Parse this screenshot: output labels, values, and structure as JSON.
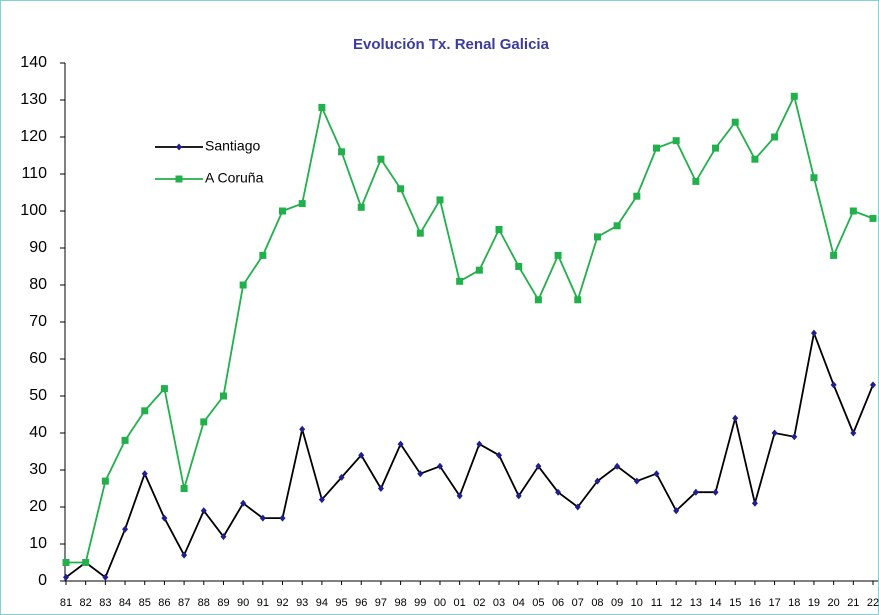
{
  "chart_data": {
    "type": "line",
    "title": "Evolución Tx. Renal Galicia",
    "categories": [
      "81",
      "82",
      "83",
      "84",
      "85",
      "86",
      "87",
      "88",
      "89",
      "90",
      "91",
      "92",
      "93",
      "94",
      "95",
      "96",
      "97",
      "98",
      "99",
      "00",
      "01",
      "02",
      "03",
      "04",
      "05",
      "06",
      "07",
      "08",
      "09",
      "10",
      "11",
      "12",
      "13",
      "14",
      "15",
      "16",
      "17",
      "18",
      "19",
      "20",
      "21",
      "22"
    ],
    "series": [
      {
        "name": "Santiago",
        "color": "#000000",
        "marker": "diamond",
        "marker_color": "#1f1f8f",
        "values": [
          1,
          5,
          1,
          14,
          29,
          17,
          7,
          19,
          12,
          21,
          17,
          17,
          41,
          22,
          28,
          34,
          25,
          37,
          29,
          31,
          23,
          37,
          34,
          23,
          31,
          24,
          20,
          27,
          31,
          27,
          29,
          19,
          24,
          24,
          44,
          21,
          40,
          39,
          67,
          53,
          40,
          53
        ]
      },
      {
        "name": "A Coruña",
        "color": "#21b04b",
        "marker": "square",
        "marker_color": "#21b04b",
        "values": [
          5,
          5,
          27,
          38,
          46,
          52,
          25,
          43,
          50,
          80,
          88,
          100,
          102,
          128,
          116,
          101,
          114,
          106,
          94,
          103,
          81,
          84,
          95,
          85,
          76,
          88,
          76,
          93,
          96,
          104,
          117,
          119,
          108,
          117,
          124,
          114,
          120,
          131,
          109,
          88,
          100,
          98
        ]
      }
    ],
    "ylim": [
      0,
      140
    ],
    "yticks": [
      0,
      10,
      20,
      30,
      40,
      50,
      60,
      70,
      80,
      90,
      100,
      110,
      120,
      130,
      140
    ],
    "grid": false,
    "legend": "upper-left"
  }
}
